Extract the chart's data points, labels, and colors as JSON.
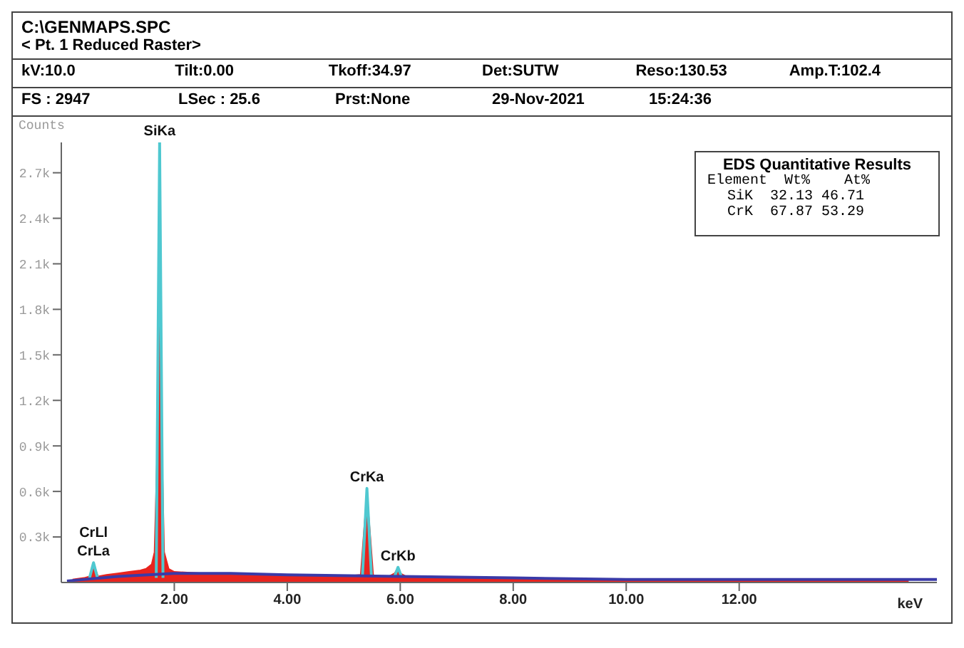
{
  "chart_data": {
    "type": "area",
    "title": "C:\\GENMAPS.SPC",
    "subtitle": "< Pt. 1 Reduced Raster>",
    "xlabel": "keV",
    "ylabel": "Counts",
    "xlim": [
      0,
      15.5
    ],
    "xticks": [
      {
        "value": 2,
        "label": "2.00"
      },
      {
        "value": 4,
        "label": "4.00"
      },
      {
        "value": 6,
        "label": "6.00"
      },
      {
        "value": 8,
        "label": "8.00"
      },
      {
        "value": 10,
        "label": "10.00"
      },
      {
        "value": 12,
        "label": "12.00"
      }
    ],
    "ylim": [
      0,
      2900
    ],
    "yticks": [
      {
        "value": 300,
        "label": "0.3k"
      },
      {
        "value": 600,
        "label": "0.6k"
      },
      {
        "value": 900,
        "label": "0.9k"
      },
      {
        "value": 1200,
        "label": "1.2k"
      },
      {
        "value": 1500,
        "label": "1.5k"
      },
      {
        "value": 1800,
        "label": "1.8k"
      },
      {
        "value": 2100,
        "label": "2.1k"
      },
      {
        "value": 2400,
        "label": "2.4k"
      },
      {
        "value": 2700,
        "label": "2.7k"
      }
    ],
    "grid": false,
    "legend": false,
    "series": [
      {
        "color": "#e8231e",
        "x": [
          0.2,
          0.4,
          0.5,
          0.55,
          0.57,
          0.6,
          0.65,
          0.8,
          1.0,
          1.2,
          1.4,
          1.5,
          1.6,
          1.65,
          1.7,
          1.74,
          1.78,
          1.82,
          1.9,
          2.0,
          2.5,
          3.0,
          3.5,
          4.0,
          4.5,
          5.0,
          5.3,
          5.35,
          5.41,
          5.47,
          5.52,
          5.6,
          5.8,
          5.9,
          5.95,
          6.0,
          6.1,
          6.5,
          7,
          8,
          9,
          10,
          11,
          12,
          13,
          14,
          15
        ],
        "values": [
          20,
          30,
          40,
          80,
          110,
          90,
          40,
          50,
          60,
          70,
          80,
          90,
          120,
          200,
          900,
          2130,
          900,
          200,
          90,
          70,
          60,
          60,
          50,
          50,
          40,
          40,
          50,
          300,
          580,
          300,
          50,
          40,
          40,
          60,
          90,
          60,
          40,
          40,
          30,
          30,
          20,
          20,
          20,
          20,
          20,
          20,
          20
        ]
      },
      {
        "type": "line",
        "color": "#4fc8d0",
        "x": [
          0.5,
          0.57,
          0.64,
          0.65,
          1.68,
          1.74,
          1.8,
          1.81,
          5.33,
          5.41,
          5.49,
          5.5,
          5.9,
          5.96,
          6.02
        ],
        "values": [
          30,
          130,
          30,
          null,
          30,
          2900,
          30,
          null,
          40,
          620,
          40,
          null,
          40,
          100,
          40
        ]
      },
      {
        "type": "line",
        "color": "#3a3aa8",
        "x": [
          0.1,
          1,
          2,
          3,
          4,
          6,
          8,
          10,
          12,
          15.5
        ],
        "values": [
          10,
          40,
          60,
          60,
          50,
          40,
          30,
          20,
          20,
          20
        ]
      }
    ],
    "annotations": [
      {
        "text": "SiKa",
        "x": 1.74,
        "y": 2900
      },
      {
        "text": "CrKa",
        "x": 5.41,
        "y": 620
      },
      {
        "text": "CrKb",
        "x": 5.96,
        "y": 100
      },
      {
        "text": "CrLa",
        "x": 0.57,
        "y": 130
      },
      {
        "text": "CrLl",
        "x": 0.57,
        "y": 130
      },
      "kV:10.0",
      "Tilt:0.00",
      "Tkoff:34.97",
      "Det:SUTW",
      "Reso:130.53",
      "Amp.T:102.4",
      "FS : 2947",
      "LSec : 25.6",
      "Prst:None",
      "29-Nov-2021",
      "15:24:36",
      "EDS Quantitative Results",
      "Element  Wt%    At%",
      "SiK  32.13 46.71",
      "CrK  67.87 53.29"
    ]
  }
}
